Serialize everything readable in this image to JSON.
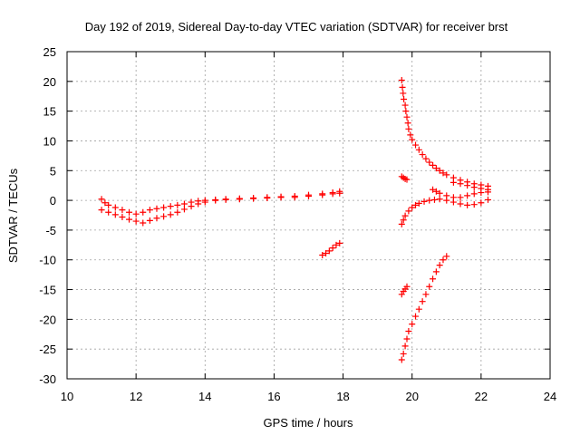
{
  "chart_data": {
    "type": "scatter",
    "title": "Day 192 of 2019, Sidereal Day-to-day VTEC variation (SDTVAR) for receiver brst",
    "xlabel": "GPS time / hours",
    "ylabel": "SDTVAR / TECUs",
    "xlim": [
      10,
      24
    ],
    "ylim": [
      -30,
      25
    ],
    "xticks": [
      10,
      12,
      14,
      16,
      18,
      20,
      22,
      24
    ],
    "yticks": [
      -30,
      -25,
      -20,
      -15,
      -10,
      -5,
      0,
      5,
      10,
      15,
      20,
      25
    ],
    "grid": true,
    "marker": "+",
    "color": "#ff0000",
    "series": [
      {
        "points": [
          [
            11.0,
            0.2
          ],
          [
            11.1,
            -0.4
          ],
          [
            11.2,
            -0.8
          ],
          [
            11.4,
            -1.2
          ],
          [
            11.6,
            -1.6
          ],
          [
            11.8,
            -2.0
          ],
          [
            12.0,
            -2.3
          ],
          [
            12.2,
            -2.0
          ],
          [
            12.4,
            -1.6
          ],
          [
            12.6,
            -1.4
          ],
          [
            12.8,
            -1.2
          ],
          [
            13.0,
            -1.0
          ],
          [
            13.2,
            -0.8
          ],
          [
            13.4,
            -0.6
          ],
          [
            13.6,
            -0.3
          ],
          [
            13.8,
            -0.1
          ],
          [
            14.0,
            0.0
          ],
          [
            14.3,
            0.1
          ],
          [
            14.6,
            0.2
          ],
          [
            15.0,
            0.3
          ],
          [
            15.4,
            0.4
          ],
          [
            15.8,
            0.5
          ],
          [
            16.2,
            0.6
          ],
          [
            16.6,
            0.7
          ],
          [
            17.0,
            0.9
          ],
          [
            17.4,
            1.1
          ],
          [
            17.7,
            1.3
          ],
          [
            17.9,
            1.5
          ]
        ]
      },
      {
        "points": [
          [
            11.0,
            -1.6
          ],
          [
            11.2,
            -2.0
          ],
          [
            11.4,
            -2.4
          ],
          [
            11.6,
            -2.8
          ],
          [
            11.8,
            -3.2
          ],
          [
            12.0,
            -3.5
          ],
          [
            12.2,
            -3.8
          ],
          [
            12.4,
            -3.4
          ],
          [
            12.6,
            -3.0
          ],
          [
            12.8,
            -2.7
          ],
          [
            13.0,
            -2.4
          ],
          [
            13.2,
            -2.0
          ],
          [
            13.4,
            -1.5
          ],
          [
            13.6,
            -1.0
          ],
          [
            13.8,
            -0.6
          ],
          [
            14.0,
            -0.3
          ],
          [
            14.3,
            0.0
          ],
          [
            14.6,
            0.1
          ],
          [
            15.0,
            0.2
          ],
          [
            15.4,
            0.3
          ],
          [
            15.8,
            0.4
          ],
          [
            16.2,
            0.5
          ],
          [
            16.6,
            0.5
          ],
          [
            17.0,
            0.7
          ],
          [
            17.4,
            0.9
          ],
          [
            17.7,
            1.1
          ],
          [
            17.9,
            1.2
          ]
        ]
      },
      {
        "points": [
          [
            17.4,
            -9.2
          ],
          [
            17.5,
            -8.9
          ],
          [
            17.6,
            -8.5
          ],
          [
            17.7,
            -8.0
          ],
          [
            17.8,
            -7.5
          ],
          [
            17.9,
            -7.2
          ]
        ]
      },
      {
        "points": [
          [
            19.7,
            20.2
          ],
          [
            19.72,
            19.0
          ],
          [
            19.74,
            18.0
          ],
          [
            19.76,
            17.0
          ],
          [
            19.8,
            16.0
          ],
          [
            19.82,
            15.0
          ],
          [
            19.85,
            14.0
          ],
          [
            19.88,
            13.0
          ],
          [
            19.9,
            12.0
          ],
          [
            19.95,
            11.0
          ],
          [
            20.0,
            10.2
          ],
          [
            20.1,
            9.3
          ],
          [
            20.2,
            8.5
          ],
          [
            20.3,
            7.7
          ],
          [
            20.4,
            7.0
          ],
          [
            20.5,
            6.4
          ],
          [
            20.6,
            5.9
          ],
          [
            20.7,
            5.4
          ],
          [
            20.8,
            5.0
          ],
          [
            20.9,
            4.6
          ],
          [
            21.0,
            4.3
          ],
          [
            21.2,
            3.8
          ],
          [
            21.4,
            3.4
          ],
          [
            21.6,
            3.1
          ],
          [
            21.8,
            2.8
          ],
          [
            22.0,
            2.6
          ],
          [
            22.2,
            2.4
          ]
        ]
      },
      {
        "points": [
          [
            21.2,
            3.0
          ],
          [
            21.4,
            2.8
          ],
          [
            21.6,
            2.5
          ],
          [
            21.8,
            2.2
          ],
          [
            22.0,
            2.0
          ],
          [
            22.2,
            1.8
          ]
        ]
      },
      {
        "points": [
          [
            20.6,
            1.8
          ],
          [
            20.7,
            1.5
          ],
          [
            20.8,
            1.2
          ],
          [
            21.0,
            0.8
          ],
          [
            21.2,
            0.5
          ],
          [
            21.4,
            0.5
          ],
          [
            21.6,
            0.8
          ],
          [
            21.8,
            1.1
          ],
          [
            22.0,
            1.3
          ],
          [
            22.2,
            1.4
          ]
        ]
      },
      {
        "points": [
          [
            19.7,
            -4.0
          ],
          [
            19.75,
            -3.3
          ],
          [
            19.8,
            -2.6
          ],
          [
            19.9,
            -1.8
          ],
          [
            20.0,
            -1.2
          ],
          [
            20.1,
            -0.8
          ],
          [
            20.2,
            -0.5
          ],
          [
            20.35,
            -0.2
          ],
          [
            20.5,
            0.0
          ],
          [
            20.65,
            0.1
          ],
          [
            20.8,
            0.2
          ],
          [
            21.0,
            0.0
          ],
          [
            21.2,
            -0.3
          ],
          [
            21.4,
            -0.6
          ],
          [
            21.6,
            -0.8
          ],
          [
            21.8,
            -0.7
          ],
          [
            22.0,
            -0.4
          ],
          [
            22.2,
            0.1
          ]
        ]
      },
      {
        "points": [
          [
            19.7,
            4.0
          ],
          [
            19.75,
            3.8
          ],
          [
            19.8,
            3.6
          ],
          [
            19.85,
            3.5
          ]
        ]
      },
      {
        "points": [
          [
            19.7,
            -15.8
          ],
          [
            19.75,
            -15.3
          ],
          [
            19.8,
            -14.9
          ],
          [
            19.85,
            -14.5
          ]
        ]
      },
      {
        "points": [
          [
            19.7,
            -26.8
          ],
          [
            19.75,
            -25.8
          ],
          [
            19.8,
            -24.5
          ],
          [
            19.85,
            -23.3
          ],
          [
            19.9,
            -22.0
          ],
          [
            20.0,
            -20.8
          ],
          [
            20.1,
            -19.5
          ],
          [
            20.2,
            -18.3
          ],
          [
            20.3,
            -17.0
          ],
          [
            20.4,
            -15.8
          ],
          [
            20.5,
            -14.5
          ],
          [
            20.6,
            -13.2
          ],
          [
            20.7,
            -12.0
          ],
          [
            20.8,
            -10.9
          ],
          [
            20.9,
            -10.0
          ],
          [
            21.0,
            -9.4
          ]
        ]
      }
    ]
  }
}
